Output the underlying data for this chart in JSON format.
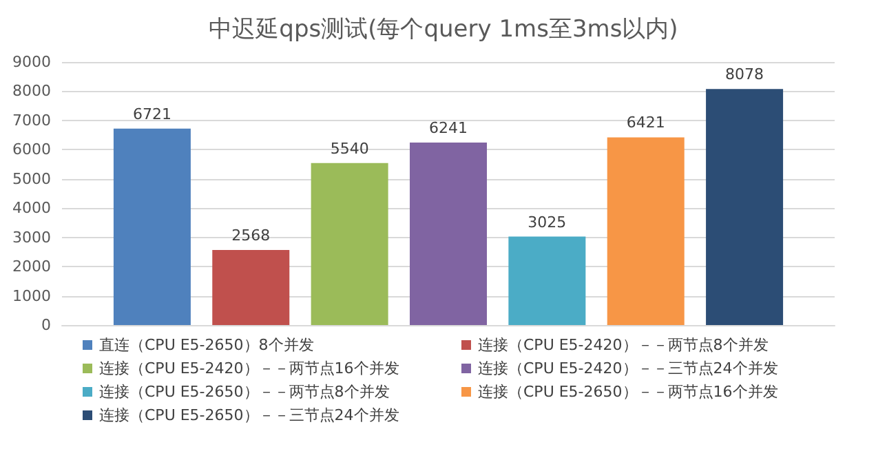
{
  "chart_data": {
    "type": "bar",
    "title": "中迟延qps测试(每个query 1ms至3ms以内)",
    "categories": [
      null
    ],
    "series": [
      {
        "name": "直连（CPU E5-2650）8个并发",
        "color": "#4f81bd",
        "values": [
          6721
        ]
      },
      {
        "name": "连接（CPU E5-2420）－－两节点8个并发",
        "color": "#c0504d",
        "values": [
          2568
        ]
      },
      {
        "name": "连接（CPU E5-2420）－－两节点16个并发",
        "color": "#9bbb59",
        "values": [
          5540
        ]
      },
      {
        "name": "连接（CPU E5-2420）－－三节点24个并发",
        "color": "#8064a2",
        "values": [
          6241
        ]
      },
      {
        "name": "连接（CPU E5-2650）－－两节点8个并发",
        "color": "#4bacc6",
        "values": [
          3025
        ]
      },
      {
        "name": "连接（CPU E5-2650）－－两节点16个并发",
        "color": "#f79646",
        "values": [
          6421
        ]
      },
      {
        "name": "连接（CPU E5-2650）－－三节点24个并发",
        "color": "#2c4d75",
        "values": [
          8078
        ]
      }
    ],
    "ylim": [
      0,
      9000
    ],
    "yticks": [
      0,
      1000,
      2000,
      3000,
      4000,
      5000,
      6000,
      7000,
      8000,
      9000
    ],
    "grid": "y",
    "legend": "bottom",
    "data_labels": true
  }
}
